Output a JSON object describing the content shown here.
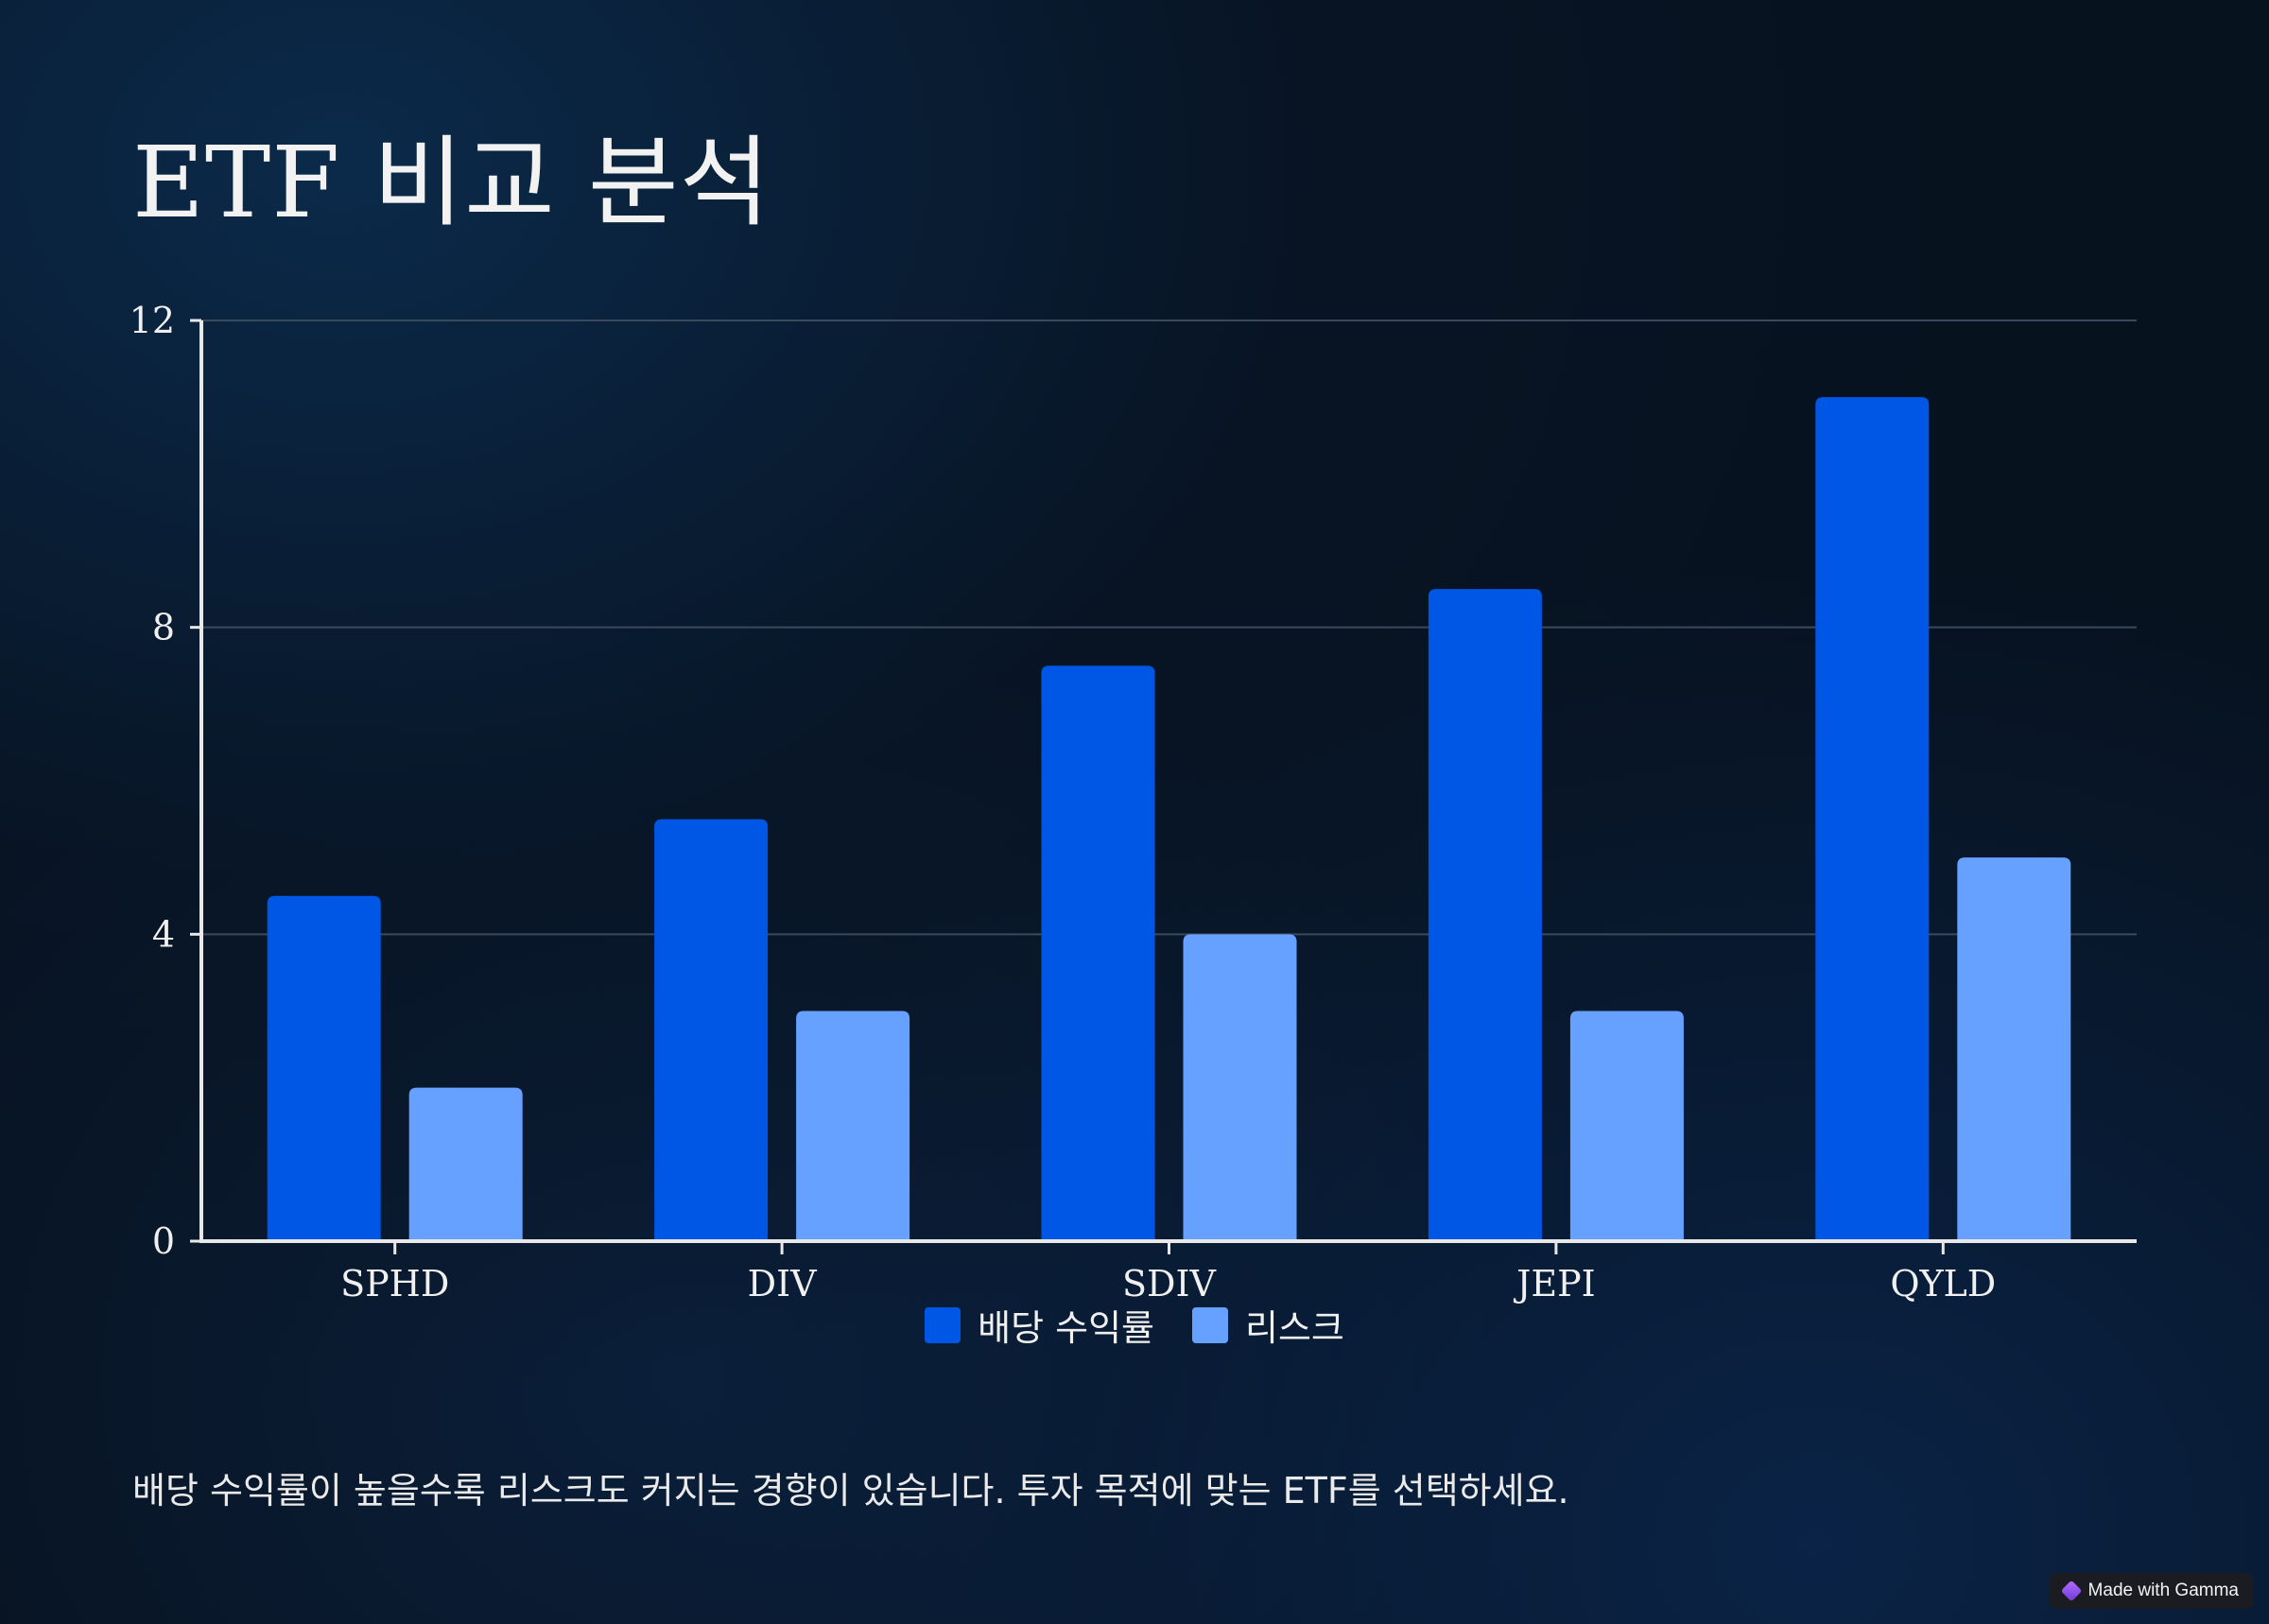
{
  "title": "ETF 비교 분석",
  "caption": "배당 수익률이 높을수록 리스크도 커지는 경향이 있습니다. 투자 목적에 맞는 ETF를 선택하세요.",
  "badge": "Made with Gamma",
  "colors": {
    "dividend": "#0057e6",
    "risk": "#66a1ff",
    "axis": "#e8e8e8",
    "grid": "#3a4a5c"
  },
  "chart_data": {
    "type": "bar",
    "categories": [
      "SPHD",
      "DIV",
      "SDIV",
      "JEPI",
      "QYLD"
    ],
    "series": [
      {
        "name": "배당 수익률",
        "values": [
          4.5,
          5.5,
          7.5,
          8.5,
          11
        ]
      },
      {
        "name": "리스크",
        "values": [
          2,
          3,
          4,
          3,
          5
        ]
      }
    ],
    "ylim": [
      0,
      12
    ],
    "yticks": [
      0,
      4,
      8,
      12
    ],
    "grid": true,
    "legend_position": "bottom"
  }
}
